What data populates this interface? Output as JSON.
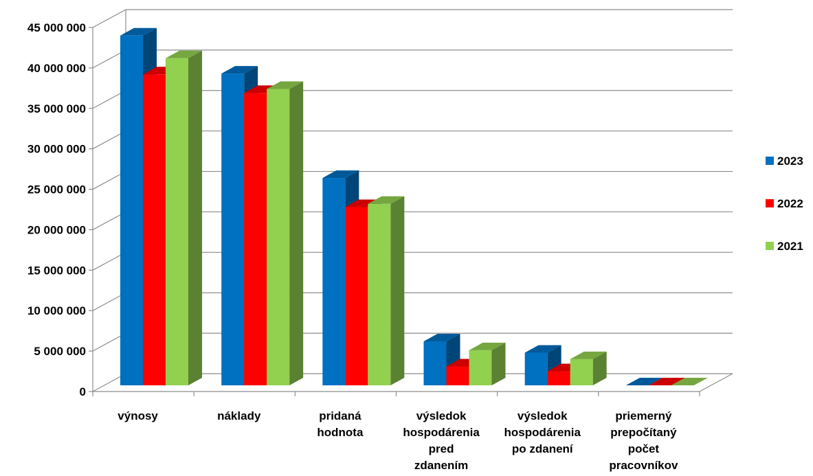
{
  "chart_data": {
    "type": "bar",
    "title": "",
    "xlabel": "",
    "ylabel": "",
    "ylim": [
      0,
      45000000
    ],
    "y_ticks": [
      0,
      5000000,
      10000000,
      15000000,
      20000000,
      25000000,
      30000000,
      35000000,
      40000000,
      45000000
    ],
    "y_tick_labels": [
      "0",
      "5 000 000",
      "10 000 000",
      "15 000 000",
      "20 000 000",
      "25 000 000",
      "30 000 000",
      "35 000 000",
      "40 000 000",
      "45 000 000"
    ],
    "categories": [
      [
        "výnosy"
      ],
      [
        "náklady"
      ],
      [
        "pridaná",
        "hodnota"
      ],
      [
        "výsledok",
        "hospodárenia",
        "pred",
        "zdanením"
      ],
      [
        "výsledok",
        "hospodárenia",
        "po zdanení"
      ],
      [
        "priemerný",
        "prepočítaný",
        "počet",
        "pracovníkov"
      ]
    ],
    "series": [
      {
        "name": "2023",
        "color": "#0070C0",
        "values": [
          44000000,
          39300000,
          26400000,
          6200000,
          4800000,
          30
        ]
      },
      {
        "name": "2022",
        "color": "#FF0000",
        "values": [
          39200000,
          36900000,
          22800000,
          3100000,
          2500000,
          30
        ]
      },
      {
        "name": "2021",
        "color": "#92D050",
        "values": [
          41200000,
          37400000,
          23200000,
          5100000,
          4000000,
          30
        ]
      }
    ],
    "grid": true,
    "legend": "right",
    "style": "3d-clustered-column"
  }
}
